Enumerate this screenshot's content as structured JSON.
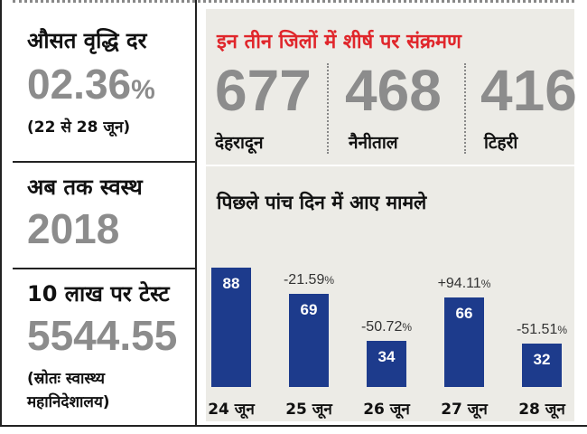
{
  "left": {
    "avg_growth_label": "औसत वृद्धि दर",
    "avg_growth_value": "02.36",
    "avg_growth_unit": "%",
    "avg_growth_period": "(22 से 28 जून)",
    "recovered_label": "अब तक स्वस्थ",
    "recovered_value": "2018",
    "tests_label": "10 लाख पर टेस्ट",
    "tests_value": "5544.55",
    "source_line1": "(स्रोतः स्वास्थ्य",
    "source_line2": "महानिदेशालय)"
  },
  "districts": {
    "title": "इन तीन जिलों में शीर्ष पर संक्रमण",
    "items": [
      {
        "value": "677",
        "name": "देहरादून"
      },
      {
        "value": "468",
        "name": "नैनीताल"
      },
      {
        "value": "416",
        "name": "टिहरी"
      }
    ]
  },
  "colors": {
    "bar": "#1d3b8c",
    "title_red": "#e0262b",
    "panel": "#ecebe6",
    "big_number": "#8c8c8c"
  },
  "chart_data": {
    "type": "bar",
    "title": "पिछले पांच दिन में आए मामले",
    "categories": [
      "24 जून",
      "25 जून",
      "26 जून",
      "27 जून",
      "28 जून"
    ],
    "values": [
      88,
      69,
      34,
      66,
      32
    ],
    "value_labels": [
      "88",
      "69",
      "34",
      "66",
      "32"
    ],
    "change_labels": [
      "",
      "-21.59",
      "-50.72",
      "+94.11",
      "-51.51"
    ],
    "change_unit": "%",
    "ylim": [
      0,
      100
    ],
    "grid": false
  }
}
